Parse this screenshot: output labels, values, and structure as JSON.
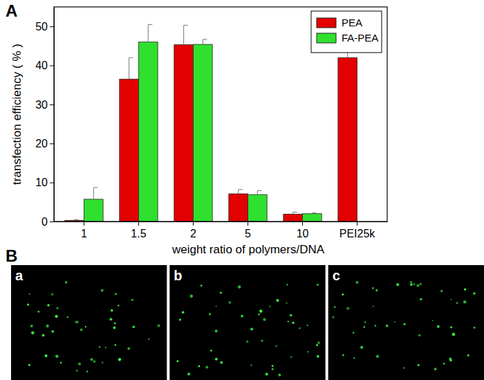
{
  "chart_data": {
    "type": "bar",
    "annotations": [
      "A"
    ],
    "x_label": "weight ratio of polymers/DNA",
    "y_label": "transfection efficiency ( % )",
    "categories": [
      "1",
      "1.5",
      "2",
      "5",
      "10",
      "PEI25k"
    ],
    "series": [
      {
        "name": "PEA",
        "color": "#e30000",
        "values": [
          0.3,
          36.5,
          45.3,
          7.1,
          1.9,
          42.0
        ],
        "errors": [
          0.2,
          5.5,
          5.0,
          1.1,
          0.5,
          3.3
        ]
      },
      {
        "name": "FA-PEA",
        "color": "#2fe02f",
        "values": [
          5.7,
          46.0,
          45.4,
          6.9,
          2.0,
          null
        ],
        "errors": [
          3.0,
          4.5,
          1.3,
          1.0,
          0.2,
          null
        ]
      }
    ],
    "ylim": [
      0,
      55
    ],
    "yticks": [
      0,
      10,
      20,
      30,
      40,
      50
    ],
    "legend": "upper right"
  },
  "images": {
    "label": "B",
    "panels": [
      "a",
      "b",
      "c"
    ]
  }
}
